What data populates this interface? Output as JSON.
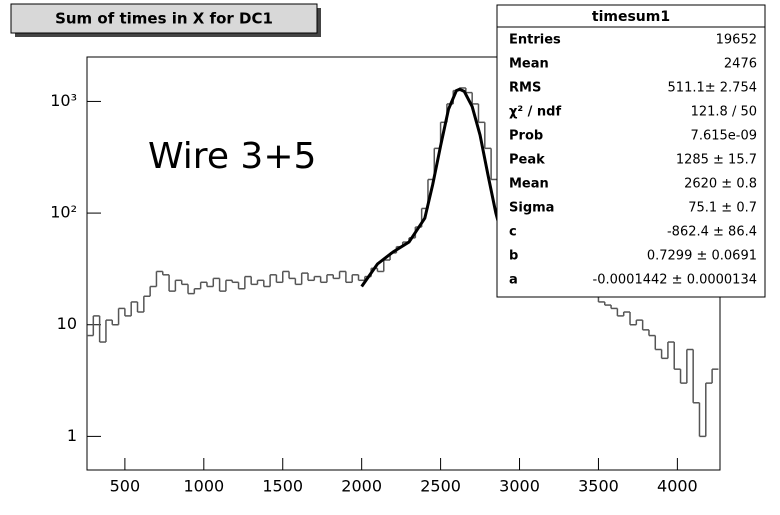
{
  "chart_data": {
    "type": "histogram",
    "title": "Sum of times in X for DC1",
    "annotation": "Wire 3+5",
    "log_y": true,
    "color": "#555555",
    "fit_color": "#000000",
    "bins": [
      260,
      300,
      340,
      380,
      420,
      460,
      500,
      540,
      580,
      620,
      660,
      700,
      740,
      780,
      820,
      860,
      900,
      940,
      980,
      1020,
      1060,
      1100,
      1140,
      1180,
      1220,
      1260,
      1300,
      1340,
      1380,
      1420,
      1460,
      1500,
      1540,
      1580,
      1620,
      1660,
      1700,
      1740,
      1780,
      1820,
      1860,
      1900,
      1940,
      1980,
      2020,
      2060,
      2100,
      2140,
      2180,
      2220,
      2260,
      2300,
      2340,
      2380,
      2420,
      2460,
      2500,
      2540,
      2580,
      2620,
      2660,
      2700,
      2740,
      2780,
      2820,
      2860,
      2900,
      2940,
      2980,
      3020,
      3060,
      3100,
      3140,
      3180,
      3220,
      3260,
      3300,
      3340,
      3380,
      3420,
      3460,
      3500,
      3540,
      3580,
      3620,
      3660,
      3700,
      3740,
      3780,
      3820,
      3860,
      3900,
      3940,
      3980,
      4020,
      4060,
      4100,
      4140,
      4180,
      4220,
      4260
    ],
    "values": [
      8,
      12,
      7,
      11,
      10,
      14,
      12,
      16,
      13,
      18,
      22,
      30,
      28,
      20,
      25,
      23,
      19,
      21,
      24,
      22,
      26,
      20,
      25,
      24,
      21,
      27,
      23,
      25,
      22,
      28,
      24,
      30,
      26,
      23,
      29,
      25,
      27,
      24,
      28,
      26,
      30,
      24,
      28,
      25,
      27,
      32,
      30,
      38,
      44,
      50,
      55,
      60,
      75,
      110,
      200,
      380,
      650,
      950,
      1250,
      1320,
      1200,
      950,
      650,
      380,
      200,
      110,
      70,
      50,
      40,
      35,
      32,
      30,
      28,
      30,
      26,
      25,
      22,
      24,
      20,
      20,
      18,
      16,
      15,
      14,
      12,
      13,
      10,
      11,
      9,
      8,
      6,
      5,
      7,
      4,
      3,
      6,
      2,
      1,
      3,
      4
    ],
    "fit": {
      "x": [
        2000,
        2100,
        2200,
        2300,
        2400,
        2450,
        2500,
        2550,
        2600,
        2620,
        2650,
        2700,
        2750,
        2800,
        2850,
        2900
      ],
      "values": [
        22,
        35,
        45,
        55,
        90,
        180,
        400,
        850,
        1250,
        1285,
        1230,
        900,
        500,
        220,
        100,
        55
      ]
    },
    "xlim": [
      260,
      4270
    ],
    "xticks": [
      500,
      1000,
      1500,
      2000,
      2500,
      3000,
      3500,
      4000
    ],
    "ylim": [
      0.5,
      2500
    ],
    "yticks": [
      1,
      10,
      {
        "value": 100,
        "label": "10²"
      },
      {
        "value": 1000,
        "label": "10³"
      }
    ],
    "stats": {
      "title": "timesum1",
      "rows": [
        [
          "Entries",
          "19652"
        ],
        [
          "Mean",
          "2476"
        ],
        [
          "RMS",
          "511.1± 2.754"
        ],
        [
          "χ² / ndf",
          "121.8 / 50"
        ],
        [
          "Prob",
          "7.615e-09"
        ],
        [
          "Peak",
          "1285 ± 15.7"
        ],
        [
          "Mean",
          "2620 ± 0.8"
        ],
        [
          "Sigma",
          "75.1 ± 0.7"
        ],
        [
          "c",
          "-862.4 ± 86.4"
        ],
        [
          "b",
          "0.7299 ± 0.0691"
        ],
        [
          "a",
          "-0.0001442 ± 0.0000134"
        ]
      ]
    }
  }
}
